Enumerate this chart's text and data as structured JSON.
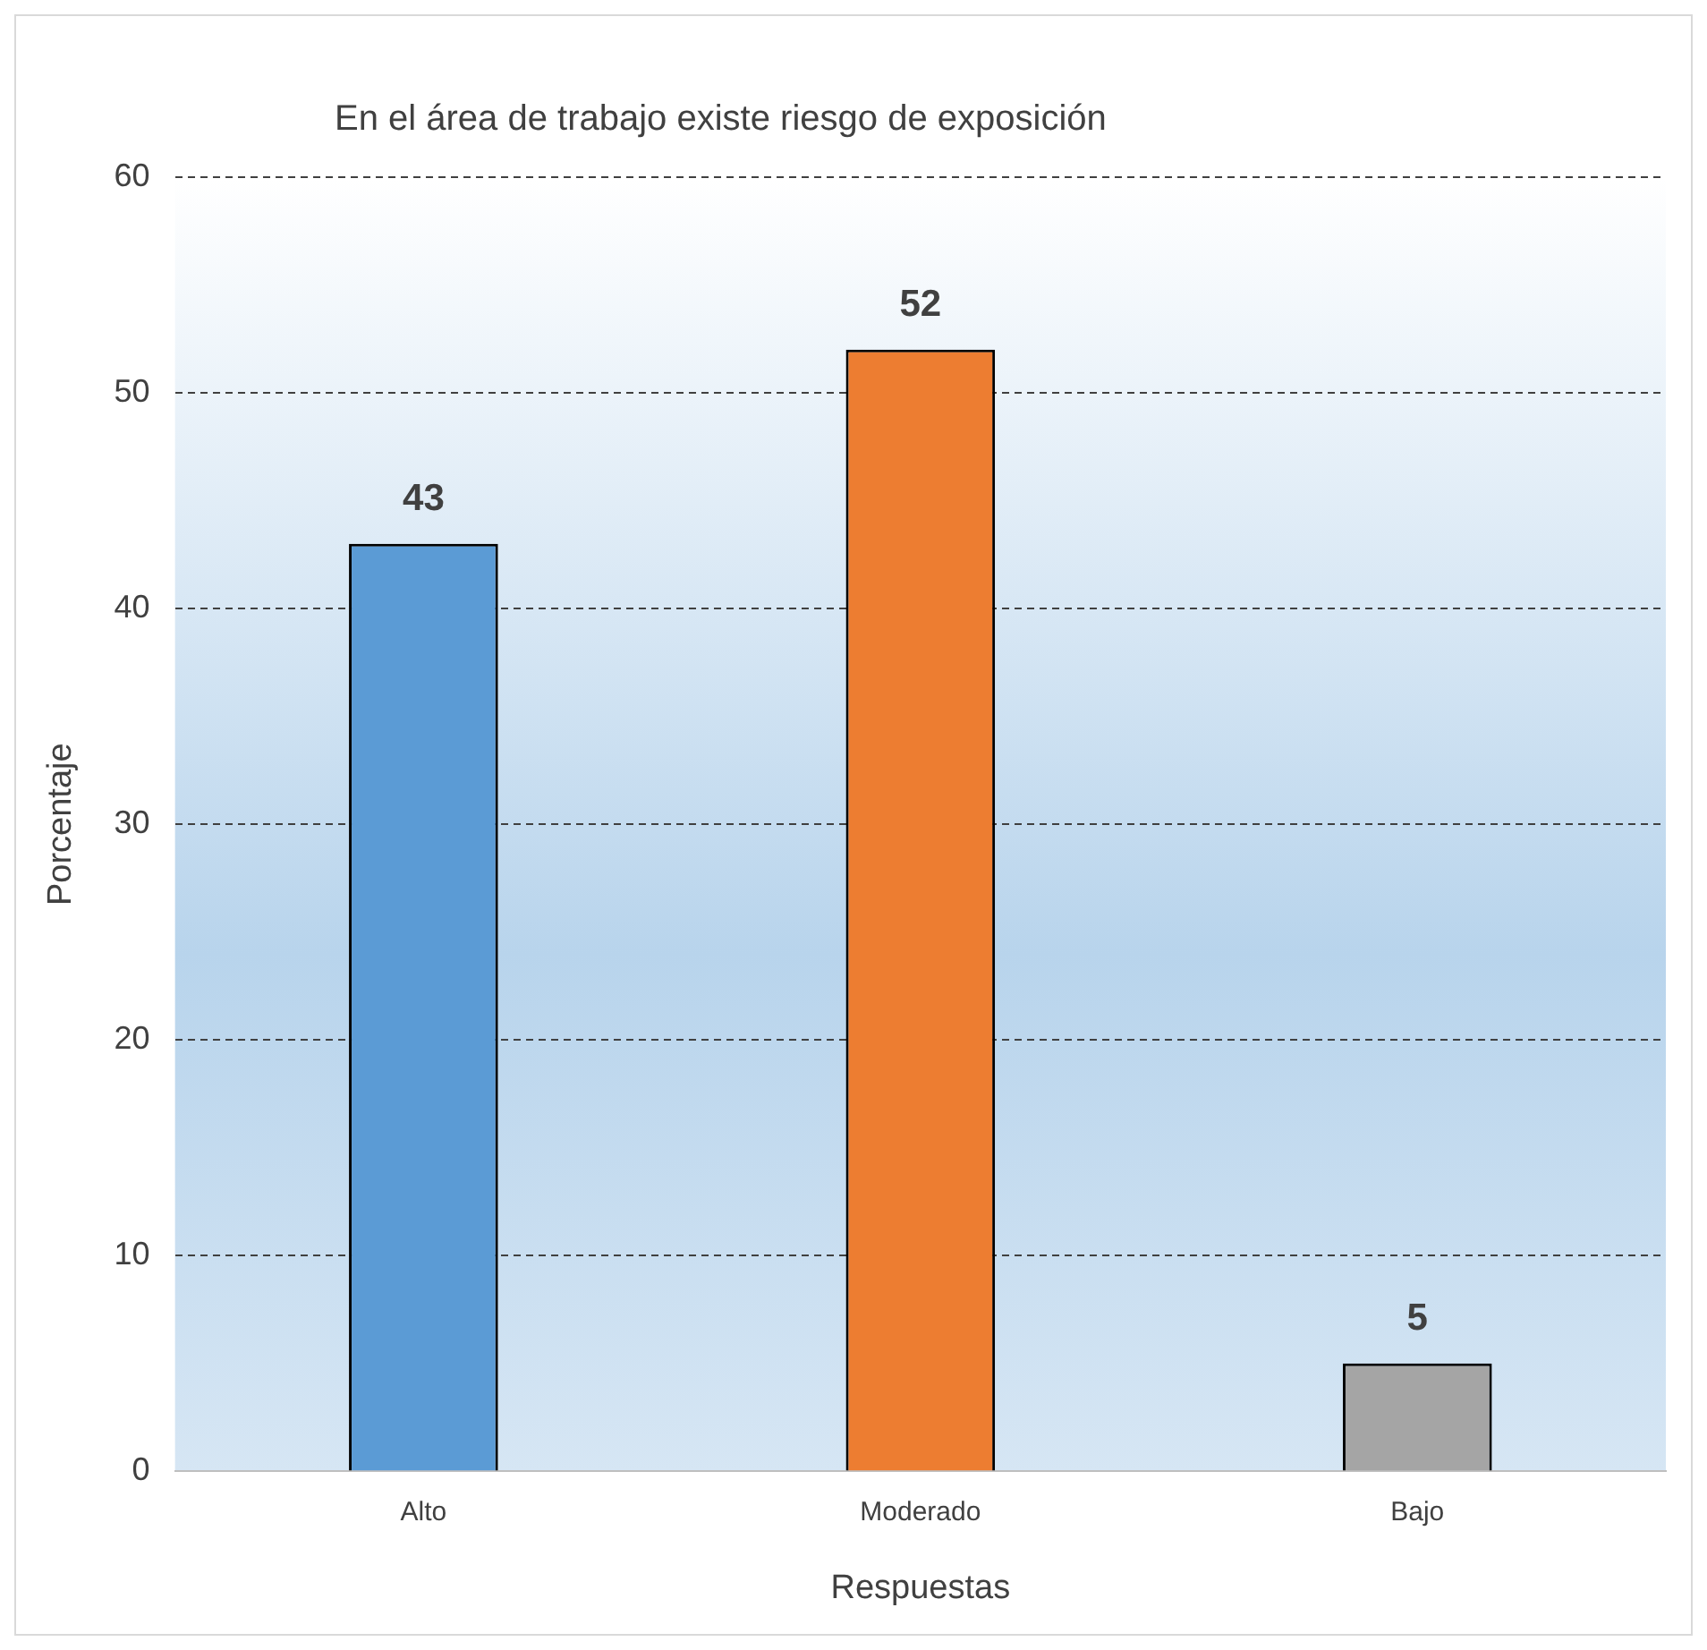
{
  "chart_data": {
    "type": "bar",
    "title": "En el área de trabajo existe riesgo de exposición",
    "xlabel": "Respuestas",
    "ylabel": "Porcentaje",
    "categories": [
      "Alto",
      "Moderado",
      "Bajo"
    ],
    "values": [
      43,
      52,
      5
    ],
    "colors": [
      "#5b9bd5",
      "#ed7d31",
      "#a5a5a5"
    ],
    "ylim": [
      0,
      60
    ],
    "yticks": [
      0,
      10,
      20,
      30,
      40,
      50,
      60
    ],
    "grid": "y",
    "data_labels": true
  }
}
